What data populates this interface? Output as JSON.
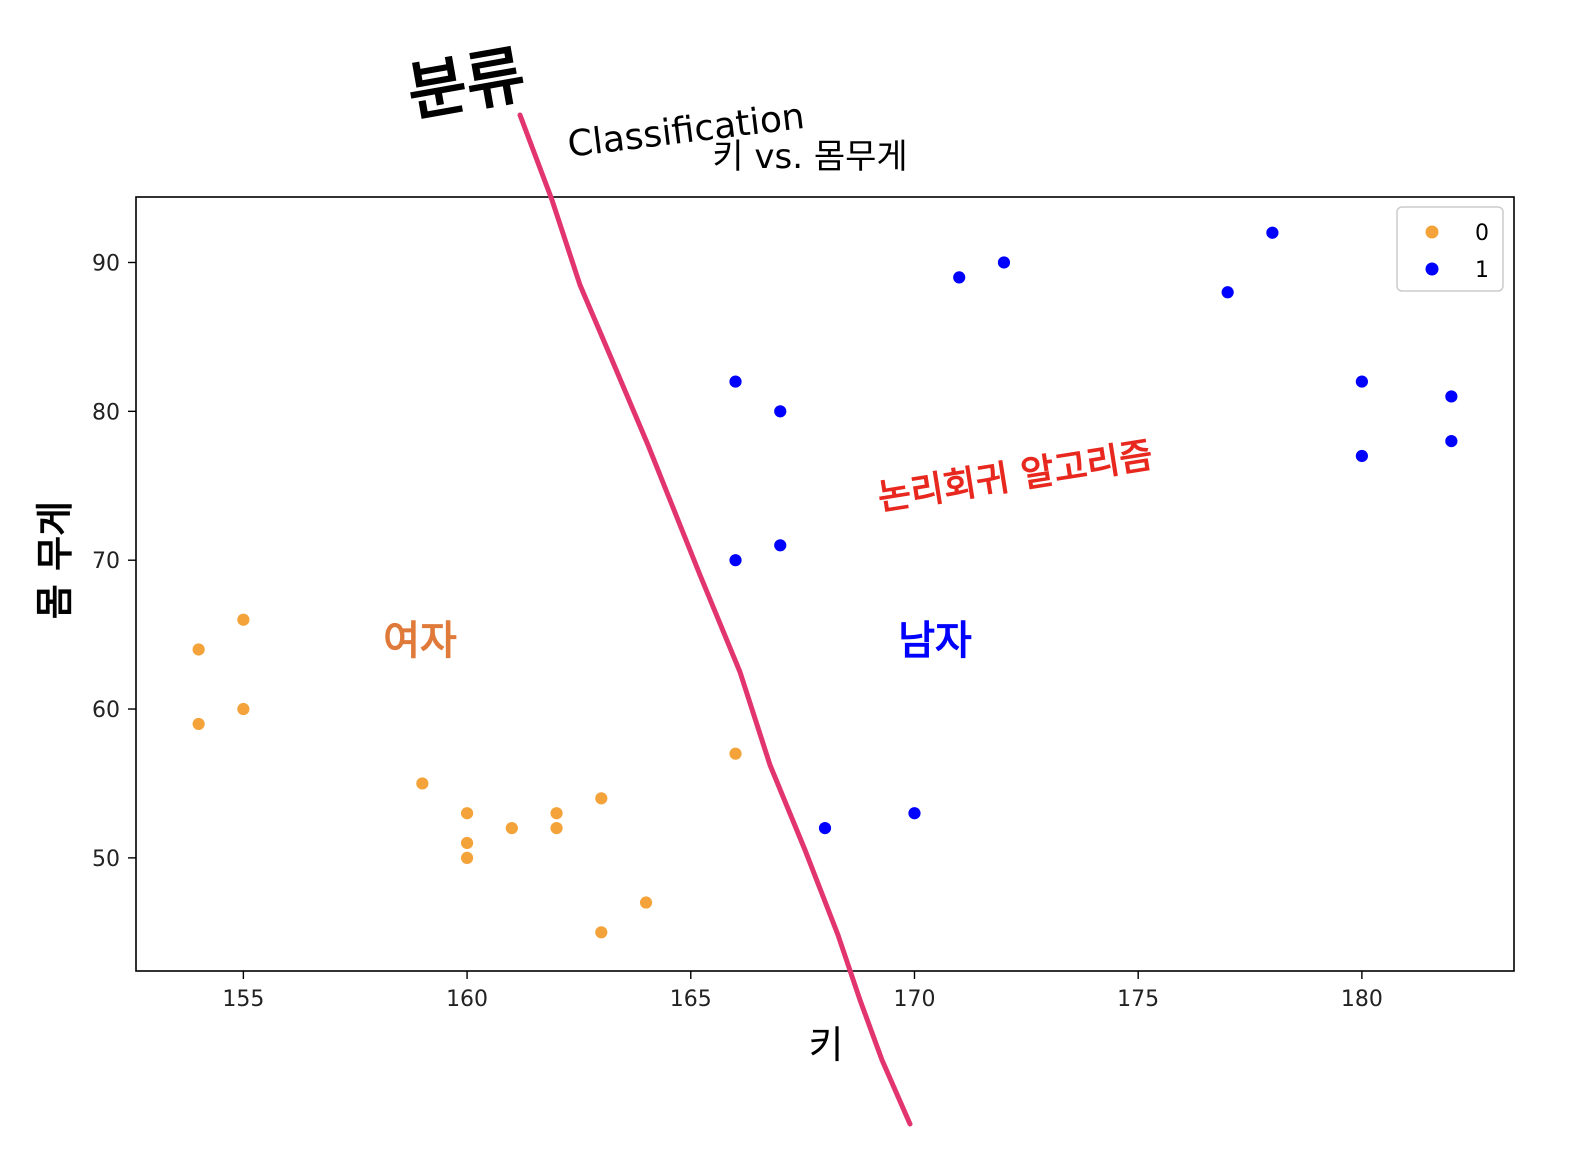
{
  "chart_data": {
    "type": "scatter",
    "title": "키 vs. 몸무게",
    "xlabel": "키",
    "ylabel": "몸 무게",
    "xlim": [
      152.6,
      183.4
    ],
    "ylim": [
      42.4,
      94.4
    ],
    "x_ticks": [
      155,
      160,
      165,
      170,
      175,
      180
    ],
    "y_ticks": [
      50,
      60,
      70,
      80,
      90
    ],
    "grid": false,
    "legend_position": "top-right",
    "series": [
      {
        "name": "0",
        "color": "#f3a33a",
        "points": [
          [
            154,
            64
          ],
          [
            154,
            59
          ],
          [
            155,
            66
          ],
          [
            155,
            60
          ],
          [
            159,
            55
          ],
          [
            160,
            53
          ],
          [
            160,
            51
          ],
          [
            160,
            50
          ],
          [
            161,
            52
          ],
          [
            162,
            53
          ],
          [
            162,
            52
          ],
          [
            163,
            54
          ],
          [
            163,
            45
          ],
          [
            164,
            47
          ],
          [
            166,
            57
          ]
        ]
      },
      {
        "name": "1",
        "color": "#0000ff",
        "points": [
          [
            166,
            82
          ],
          [
            166,
            70
          ],
          [
            167,
            80
          ],
          [
            167,
            71
          ],
          [
            168,
            52
          ],
          [
            170,
            53
          ],
          [
            171,
            89
          ],
          [
            172,
            90
          ],
          [
            177,
            88
          ],
          [
            178,
            92
          ],
          [
            180,
            82
          ],
          [
            180,
            77
          ],
          [
            182,
            81
          ],
          [
            182,
            78
          ]
        ]
      }
    ],
    "annotations": {
      "heading_korean": "분류",
      "heading_english": "Classification",
      "algorithm": "논리회귀 알고리즘",
      "female_label": "여자",
      "male_label": "남자"
    },
    "colors": {
      "divider_line": "#e23570",
      "algorithm_text": "#e8281e",
      "female_text": "#e07a3a",
      "male_text": "#0000ff"
    }
  }
}
